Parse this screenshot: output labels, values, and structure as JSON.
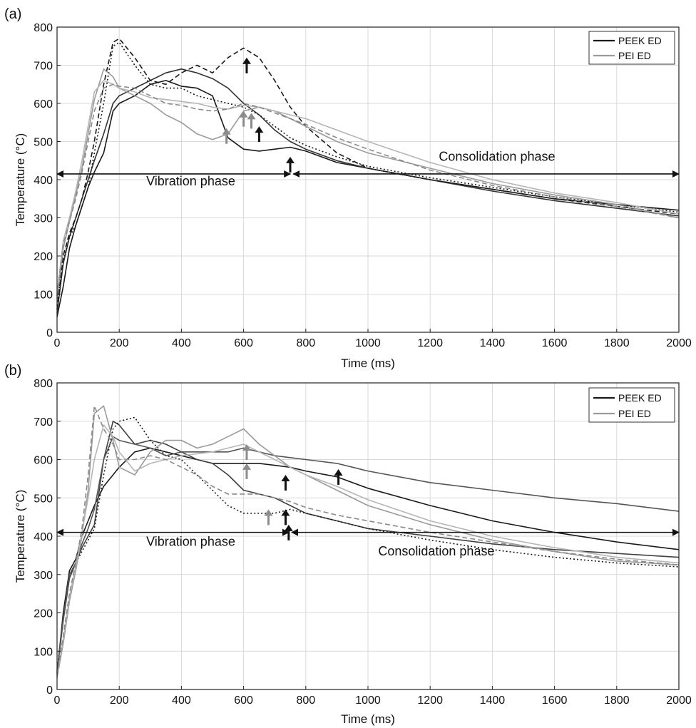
{
  "chart_data": [
    {
      "panel": "(a)",
      "type": "line",
      "xlabel": "Time (ms)",
      "ylabel": "Temperature (°C)",
      "xlim": [
        0,
        2000
      ],
      "ylim": [
        0,
        800
      ],
      "xticks": [
        0,
        200,
        400,
        600,
        800,
        1000,
        1200,
        1400,
        1600,
        1800,
        2000
      ],
      "yticks": [
        0,
        100,
        200,
        300,
        400,
        500,
        600,
        700,
        800
      ],
      "grid": true,
      "legend": {
        "position": "top-right",
        "entries": [
          {
            "label": "PEEK ED",
            "color": "#1a1a1a"
          },
          {
            "label": "PEI ED",
            "color": "#9a9a9a"
          }
        ]
      },
      "phase_arrow_y": 415,
      "phase_split_x": 755,
      "phases": [
        {
          "label": "Vibration phase",
          "x": 430,
          "y": 385
        },
        {
          "label": "Consolidation phase",
          "x": 1415,
          "y": 450
        }
      ],
      "markers": [
        {
          "x": 610,
          "y": 720,
          "color": "black"
        },
        {
          "x": 650,
          "y": 540,
          "color": "black"
        },
        {
          "x": 750,
          "y": 460,
          "color": "black"
        },
        {
          "x": 545,
          "y": 535,
          "color": "gray"
        },
        {
          "x": 600,
          "y": 580,
          "color": "gray"
        },
        {
          "x": 625,
          "y": 575,
          "color": "gray"
        }
      ],
      "series": [
        {
          "group": "PEEK ED",
          "style": "solid",
          "color": "#1a1a1a",
          "x": [
            0,
            20,
            40,
            60,
            80,
            100,
            120,
            150,
            180,
            200,
            250,
            300,
            350,
            400,
            450,
            500,
            550,
            600,
            650,
            700,
            750,
            800,
            900,
            1000,
            1200,
            1400,
            1600,
            1800,
            2000
          ],
          "y": [
            40,
            120,
            220,
            280,
            330,
            380,
            420,
            470,
            580,
            600,
            620,
            650,
            660,
            645,
            640,
            620,
            510,
            480,
            475,
            480,
            485,
            475,
            445,
            430,
            400,
            375,
            350,
            335,
            320
          ]
        },
        {
          "group": "PEEK ED",
          "style": "solid",
          "color": "#333333",
          "x": [
            0,
            20,
            40,
            60,
            80,
            100,
            120,
            150,
            180,
            200,
            250,
            300,
            350,
            400,
            450,
            500,
            550,
            600,
            650,
            700,
            750,
            800,
            900,
            1000,
            1200,
            1400,
            1600,
            1800,
            2000
          ],
          "y": [
            50,
            180,
            250,
            300,
            350,
            400,
            450,
            520,
            600,
            620,
            640,
            660,
            680,
            690,
            680,
            665,
            640,
            600,
            570,
            530,
            500,
            480,
            450,
            430,
            400,
            370,
            345,
            325,
            305
          ]
        },
        {
          "group": "PEEK ED",
          "style": "dashed",
          "color": "#1a1a1a",
          "x": [
            0,
            20,
            40,
            60,
            80,
            100,
            120,
            150,
            180,
            200,
            250,
            300,
            350,
            400,
            450,
            500,
            550,
            600,
            650,
            700,
            750,
            800,
            900,
            1000,
            1200,
            1400,
            1600,
            1800,
            2000
          ],
          "y": [
            60,
            200,
            260,
            300,
            350,
            420,
            500,
            650,
            760,
            770,
            720,
            660,
            650,
            680,
            700,
            680,
            720,
            745,
            720,
            660,
            590,
            540,
            470,
            430,
            400,
            375,
            350,
            330,
            310
          ]
        },
        {
          "group": "PEEK ED",
          "style": "dotted",
          "color": "#1a1a1a",
          "x": [
            0,
            20,
            40,
            60,
            80,
            100,
            120,
            150,
            180,
            200,
            250,
            300,
            350,
            400,
            450,
            500,
            550,
            600,
            650,
            700,
            750,
            800,
            900,
            1000,
            1200,
            1400,
            1600,
            1800,
            2000
          ],
          "y": [
            70,
            190,
            250,
            280,
            330,
            380,
            470,
            600,
            750,
            760,
            700,
            650,
            640,
            640,
            620,
            610,
            600,
            590,
            570,
            540,
            510,
            490,
            460,
            435,
            405,
            380,
            355,
            335,
            315
          ]
        },
        {
          "group": "PEI ED",
          "style": "solid",
          "color": "#9a9a9a",
          "x": [
            0,
            20,
            40,
            60,
            80,
            100,
            120,
            150,
            180,
            200,
            250,
            300,
            350,
            400,
            450,
            500,
            550,
            600,
            650,
            700,
            750,
            800,
            900,
            1000,
            1200,
            1400,
            1600,
            1800,
            2000
          ],
          "y": [
            90,
            220,
            290,
            360,
            430,
            520,
            610,
            690,
            670,
            640,
            620,
            600,
            570,
            550,
            520,
            505,
            520,
            580,
            590,
            580,
            560,
            540,
            500,
            470,
            430,
            390,
            360,
            335,
            300
          ]
        },
        {
          "group": "PEI ED",
          "style": "solid",
          "color": "#b5b5b5",
          "x": [
            0,
            20,
            40,
            60,
            80,
            100,
            120,
            150,
            180,
            200,
            250,
            300,
            350,
            400,
            450,
            500,
            550,
            600,
            650,
            700,
            750,
            800,
            900,
            1000,
            1200,
            1400,
            1600,
            1800,
            2000
          ],
          "y": [
            100,
            240,
            300,
            370,
            450,
            540,
            630,
            660,
            650,
            640,
            630,
            615,
            610,
            605,
            600,
            590,
            585,
            595,
            590,
            580,
            570,
            560,
            530,
            500,
            445,
            400,
            365,
            340,
            310
          ]
        },
        {
          "group": "PEI ED",
          "style": "dashed",
          "color": "#8a8a8a",
          "x": [
            0,
            20,
            40,
            60,
            80,
            100,
            120,
            150,
            180,
            200,
            250,
            300,
            350,
            400,
            450,
            500,
            550,
            600,
            650,
            700,
            750,
            800,
            900,
            1000,
            1200,
            1400,
            1600,
            1800,
            2000
          ],
          "y": [
            95,
            230,
            290,
            350,
            420,
            500,
            580,
            640,
            650,
            645,
            640,
            620,
            600,
            595,
            585,
            580,
            585,
            600,
            590,
            575,
            560,
            545,
            510,
            480,
            425,
            385,
            355,
            330,
            300
          ]
        }
      ]
    },
    {
      "panel": "(b)",
      "type": "line",
      "xlabel": "Time (ms)",
      "ylabel": "Temperature (°C)",
      "xlim": [
        0,
        2000
      ],
      "ylim": [
        0,
        800
      ],
      "xticks": [
        0,
        200,
        400,
        600,
        800,
        1000,
        1200,
        1400,
        1600,
        1800,
        2000
      ],
      "yticks": [
        0,
        100,
        200,
        300,
        400,
        500,
        600,
        700,
        800
      ],
      "grid": true,
      "legend": {
        "position": "top-right",
        "entries": [
          {
            "label": "PEEK ED",
            "color": "#1a1a1a"
          },
          {
            "label": "PEI ED",
            "color": "#9a9a9a"
          }
        ]
      },
      "phase_arrow_y": 410,
      "phase_split_x": 750,
      "phases": [
        {
          "label": "Vibration phase",
          "x": 430,
          "y": 375
        },
        {
          "label": "Consolidation phase",
          "x": 1220,
          "y": 350
        }
      ],
      "markers": [
        {
          "x": 735,
          "y": 560,
          "color": "black"
        },
        {
          "x": 735,
          "y": 470,
          "color": "black"
        },
        {
          "x": 745,
          "y": 430,
          "color": "black"
        },
        {
          "x": 905,
          "y": 575,
          "color": "black"
        },
        {
          "x": 680,
          "y": 470,
          "color": "gray"
        },
        {
          "x": 610,
          "y": 640,
          "color": "gray"
        },
        {
          "x": 610,
          "y": 590,
          "color": "gray"
        }
      ],
      "series": [
        {
          "group": "PEEK ED",
          "style": "solid",
          "color": "#1a1a1a",
          "x": [
            0,
            20,
            40,
            60,
            80,
            100,
            120,
            150,
            180,
            200,
            250,
            300,
            350,
            400,
            450,
            500,
            550,
            600,
            650,
            700,
            750,
            800,
            900,
            1000,
            1200,
            1400,
            1600,
            1800,
            2000
          ],
          "y": [
            40,
            200,
            310,
            340,
            400,
            440,
            480,
            530,
            560,
            580,
            620,
            630,
            620,
            610,
            600,
            590,
            590,
            590,
            590,
            585,
            580,
            570,
            555,
            525,
            480,
            440,
            410,
            385,
            365
          ]
        },
        {
          "group": "PEEK ED",
          "style": "solid",
          "color": "#404040",
          "x": [
            0,
            20,
            40,
            60,
            80,
            100,
            120,
            150,
            180,
            200,
            250,
            300,
            350,
            400,
            450,
            500,
            550,
            600,
            650,
            700,
            750,
            800,
            900,
            1000,
            1200,
            1400,
            1600,
            1800,
            2000
          ],
          "y": [
            45,
            180,
            290,
            330,
            370,
            400,
            430,
            600,
            700,
            690,
            640,
            650,
            640,
            620,
            600,
            590,
            560,
            520,
            510,
            500,
            480,
            460,
            440,
            420,
            400,
            380,
            365,
            355,
            345
          ]
        },
        {
          "group": "PEEK ED",
          "style": "dotted",
          "color": "#1a1a1a",
          "x": [
            0,
            20,
            40,
            60,
            80,
            100,
            120,
            150,
            180,
            200,
            250,
            300,
            350,
            400,
            450,
            500,
            550,
            600,
            650,
            700,
            750,
            800,
            900,
            1000,
            1200,
            1400,
            1600,
            1800,
            2000
          ],
          "y": [
            50,
            190,
            300,
            330,
            360,
            390,
            420,
            560,
            680,
            700,
            710,
            650,
            610,
            600,
            560,
            520,
            480,
            460,
            460,
            460,
            470,
            460,
            440,
            420,
            390,
            365,
            345,
            330,
            320
          ]
        },
        {
          "group": "PEEK ED",
          "style": "solid",
          "color": "#555555",
          "x": [
            0,
            20,
            40,
            60,
            80,
            100,
            120,
            150,
            180,
            200,
            250,
            300,
            350,
            400,
            450,
            500,
            550,
            600,
            650,
            700,
            750,
            800,
            900,
            1000,
            1200,
            1400,
            1600,
            1800,
            2000
          ],
          "y": [
            45,
            185,
            300,
            330,
            380,
            420,
            470,
            600,
            660,
            650,
            640,
            630,
            610,
            620,
            620,
            620,
            620,
            630,
            620,
            610,
            605,
            600,
            590,
            570,
            540,
            520,
            500,
            485,
            465
          ]
        },
        {
          "group": "PEI ED",
          "style": "solid",
          "color": "#9a9a9a",
          "x": [
            0,
            20,
            40,
            60,
            80,
            100,
            120,
            150,
            180,
            200,
            250,
            300,
            350,
            400,
            450,
            500,
            550,
            600,
            650,
            700,
            750,
            800,
            900,
            1000,
            1200,
            1400,
            1600,
            1800,
            2000
          ],
          "y": [
            30,
            120,
            230,
            310,
            400,
            520,
            720,
            740,
            650,
            580,
            560,
            620,
            650,
            650,
            630,
            640,
            660,
            680,
            640,
            610,
            580,
            560,
            520,
            480,
            430,
            390,
            360,
            335,
            325
          ]
        },
        {
          "group": "PEI ED",
          "style": "solid",
          "color": "#b5b5b5",
          "x": [
            0,
            20,
            40,
            60,
            80,
            100,
            120,
            150,
            180,
            200,
            250,
            300,
            350,
            400,
            450,
            500,
            550,
            600,
            650,
            700,
            750,
            800,
            900,
            1000,
            1200,
            1400,
            1600,
            1800,
            2000
          ],
          "y": [
            35,
            130,
            240,
            320,
            410,
            500,
            600,
            690,
            660,
            620,
            570,
            590,
            600,
            610,
            615,
            620,
            630,
            640,
            620,
            600,
            580,
            560,
            530,
            495,
            440,
            400,
            370,
            345,
            330
          ]
        },
        {
          "group": "PEI ED",
          "style": "dashed",
          "color": "#8a8a8a",
          "x": [
            0,
            20,
            40,
            60,
            80,
            100,
            120,
            150,
            180,
            200,
            250,
            300,
            350,
            400,
            450,
            500,
            550,
            600,
            650,
            700,
            750,
            800,
            900,
            1000,
            1200,
            1400,
            1600,
            1800,
            2000
          ],
          "y": [
            35,
            140,
            250,
            330,
            420,
            560,
            740,
            680,
            640,
            600,
            600,
            610,
            600,
            580,
            560,
            530,
            510,
            510,
            510,
            500,
            490,
            475,
            455,
            440,
            410,
            385,
            360,
            340,
            325
          ]
        }
      ]
    }
  ]
}
